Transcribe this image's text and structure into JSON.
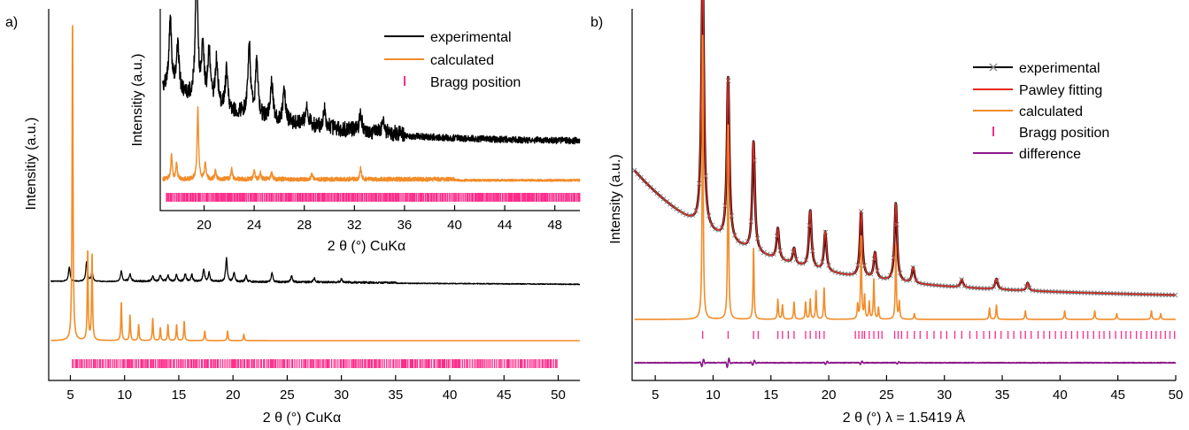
{
  "figure": {
    "colors": {
      "experimental": "#000000",
      "calculated": "#f28c28",
      "bragg": "#ff2a8a",
      "pawley": "#e8281e",
      "difference": "#8b1a8b",
      "exp_marker": "#8a8a8a"
    }
  },
  "chart_data": [
    {
      "panel": "a)",
      "type": "line",
      "title": "",
      "xlabel": "2 θ (°) CuKα",
      "ylabel": "Intensitiy (a.u.)",
      "xlim": [
        3,
        52
      ],
      "xticks": [
        5,
        10,
        15,
        20,
        25,
        30,
        35,
        40,
        45,
        50
      ],
      "legend": {
        "placement": "inset-top-right",
        "entries": [
          "experimental",
          "calculated",
          "Bragg position"
        ]
      },
      "series": [
        {
          "name": "experimental",
          "style": "line",
          "x": [
            4.9,
            6.5,
            7.0,
            9.7,
            10.5,
            12.6,
            13.3,
            14.0,
            14.8,
            15.6,
            16.2,
            17.3,
            17.8,
            19.4,
            20.1,
            21.2,
            23.6,
            25.4,
            27.5,
            30.0
          ],
          "peak_heights": [
            16,
            22,
            10,
            12,
            8,
            6,
            7,
            7,
            8,
            9,
            8,
            14,
            10,
            26,
            10,
            7,
            10,
            7,
            5,
            4
          ]
        },
        {
          "name": "calculated",
          "style": "line",
          "x": [
            5.2,
            6.6,
            7.0,
            9.7,
            10.5,
            11.3,
            12.6,
            13.3,
            14.0,
            14.8,
            15.5,
            17.4,
            19.5,
            21.0
          ],
          "peak_heights": [
            100,
            28,
            27,
            12,
            8,
            5,
            7,
            4,
            5,
            5,
            6,
            3,
            3,
            2
          ]
        },
        {
          "name": "Bragg position",
          "style": "ticks",
          "first_reflection": 5.2,
          "last_reflection": 50
        }
      ],
      "inset": {
        "xlabel": "2 θ (°) CuKα",
        "ylabel": "Intensitiy (a.u.)",
        "xlim": [
          16.5,
          50
        ],
        "xticks": [
          20,
          24,
          28,
          32,
          36,
          40,
          44,
          48
        ],
        "series": [
          {
            "name": "experimental",
            "x": [
              17.3,
              17.9,
              19.4,
              19.9,
              20.4,
              21.0,
              21.8,
              23.6,
              24.2,
              25.4,
              26.4,
              28.2,
              29.6,
              32.5,
              34.3
            ],
            "peak_heights": [
              55,
              38,
              100,
              40,
              38,
              35,
              30,
              55,
              40,
              28,
              22,
              18,
              15,
              14,
              10
            ]
          },
          {
            "name": "calculated",
            "x": [
              17.4,
              17.8,
              19.5,
              20.1,
              20.9,
              22.2,
              24.0,
              24.5,
              25.4,
              28.6,
              32.5
            ],
            "peak_heights": [
              35,
              22,
              100,
              22,
              12,
              14,
              12,
              9,
              10,
              8,
              16
            ]
          },
          {
            "name": "Bragg position",
            "style": "ticks",
            "first_reflection": 17.0,
            "last_reflection": 50
          }
        ]
      }
    },
    {
      "panel": "b)",
      "type": "line",
      "title": "",
      "xlabel": "2 θ (°) λ = 1.5419 Å",
      "ylabel": "Intensity (a.u.)",
      "xlim": [
        3,
        50
      ],
      "xticks": [
        5,
        10,
        15,
        20,
        25,
        30,
        35,
        40,
        45,
        50
      ],
      "legend": {
        "placement": "top-right",
        "entries": [
          "experimental",
          "Pawley fitting",
          "calculated",
          "Bragg position",
          "difference"
        ]
      },
      "series": [
        {
          "name": "experimental",
          "style": "line+cross-markers",
          "x": [
            9.1,
            11.3,
            13.5,
            15.6,
            17.0,
            18.4,
            19.7,
            22.8,
            24.0,
            25.8,
            27.3,
            31.5,
            34.5,
            37.2
          ],
          "peak_heights": [
            100,
            62,
            42,
            12,
            6,
            22,
            15,
            25,
            10,
            30,
            6,
            3,
            4,
            3
          ]
        },
        {
          "name": "Pawley fitting",
          "style": "line",
          "follows": "experimental"
        },
        {
          "name": "calculated",
          "style": "line",
          "x": [
            9.1,
            11.3,
            13.5,
            15.6,
            16.0,
            17.0,
            18.0,
            18.4,
            18.9,
            19.6,
            22.5,
            22.8,
            23.1,
            23.5,
            23.9,
            24.3,
            25.8,
            26.1,
            27.4,
            33.9,
            34.5,
            37.0,
            40.4,
            43.0,
            44.9,
            47.9,
            48.7
          ],
          "peak_heights": [
            100,
            68,
            25,
            7,
            5,
            6,
            6,
            7,
            10,
            11,
            5,
            29,
            8,
            6,
            14,
            4,
            26,
            6,
            2,
            4,
            5,
            3,
            3,
            3,
            2,
            3,
            2
          ]
        },
        {
          "name": "Bragg position",
          "style": "ticks",
          "positions": [
            9.1,
            11.3,
            13.5,
            13.9,
            15.6,
            16.0,
            16.5,
            17.0,
            18.0,
            18.4,
            18.9,
            19.2,
            19.6,
            22.3,
            22.6,
            22.9,
            23.1,
            23.5,
            23.9,
            24.3,
            24.6,
            25.7,
            26.0,
            26.3,
            26.8,
            27.4,
            27.9,
            28.5,
            29.1,
            29.7,
            30.2,
            30.9,
            31.5,
            32.2,
            32.8,
            33.4,
            33.9,
            34.4,
            34.9,
            35.5,
            36.0,
            36.6,
            37.0,
            37.5,
            38.1,
            38.6,
            39.1,
            39.6,
            40.1,
            40.5,
            41.0,
            41.5,
            42.0,
            42.4,
            42.9,
            43.4,
            43.8,
            44.3,
            44.8,
            45.3,
            45.7,
            46.1,
            46.6,
            47.0,
            47.5,
            47.9,
            48.3,
            48.7,
            49.1,
            49.5,
            49.9
          ]
        },
        {
          "name": "difference",
          "style": "line",
          "x": [
            9.1,
            11.3,
            13.5,
            19.8,
            22.8,
            26.0
          ],
          "peak_heights": [
            5,
            6,
            3,
            2,
            2,
            1.5
          ]
        }
      ]
    }
  ]
}
